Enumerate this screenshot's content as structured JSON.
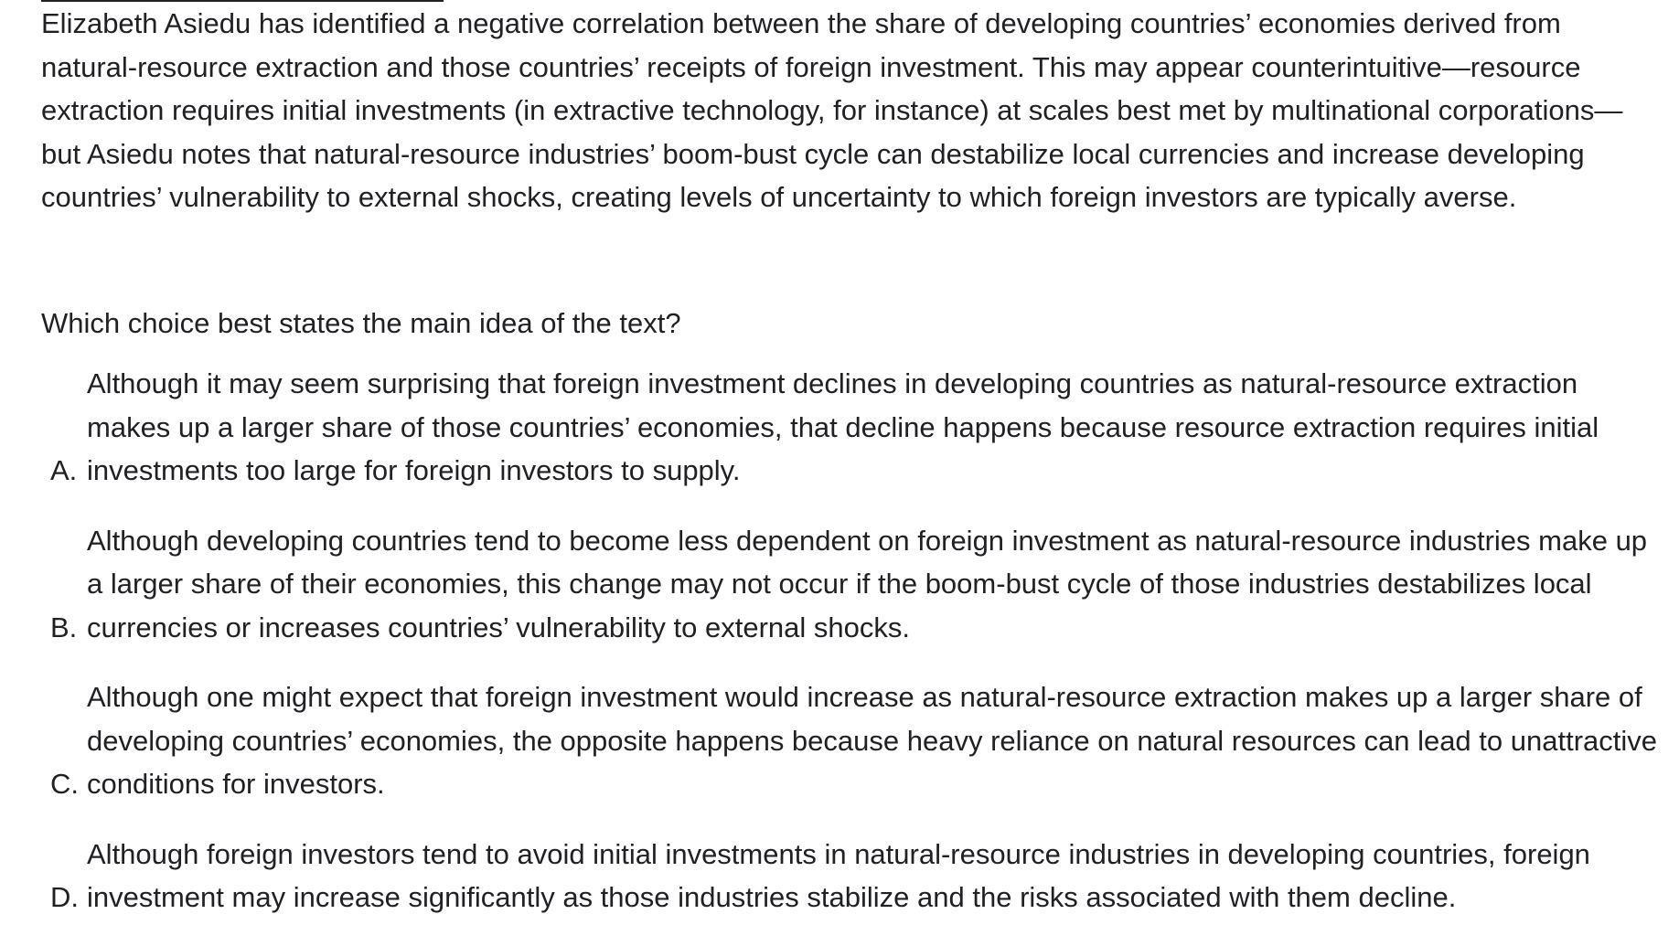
{
  "passage": {
    "text": "Elizabeth Asiedu has identified a negative correlation between the share of developing countries’ economies derived from natural-resource extraction and those countries’ receipts of foreign investment. This may appear counterintuitive—resource extraction requires initial investments (in extractive technology, for instance) at scales best met by multinational corporations—but Asiedu notes that natural-resource industries’ boom-bust cycle can destabilize local currencies and increase developing countries’ vulnerability to external shocks, creating levels of uncertainty to which foreign investors are typically averse."
  },
  "question": {
    "text": "Which choice best states the main idea of the text?"
  },
  "choices": [
    {
      "letter": "A.",
      "text": "Although it may seem surprising that foreign investment declines in developing countries as natural-resource extraction makes up a larger share of those countries’ economies, that decline happens because resource extraction requires initial investments too large for foreign investors to supply."
    },
    {
      "letter": "B.",
      "text": "Although developing countries tend to become less dependent on foreign investment as natural-resource industries make up a larger share of their economies, this change may not occur if the boom-bust cycle of those industries destabilizes local currencies or increases countries’ vulnerability to external shocks."
    },
    {
      "letter": "C.",
      "text": "Although one might expect that foreign investment would increase as natural-resource extraction makes up a larger share of developing countries’ economies, the opposite happens because heavy reliance on natural resources can lead to unattractive conditions for investors."
    },
    {
      "letter": "D.",
      "text": "Although foreign investors tend to avoid initial investments in natural-resource industries in developing countries, foreign investment may increase significantly as those industries stabilize and the risks associated with them decline."
    }
  ]
}
